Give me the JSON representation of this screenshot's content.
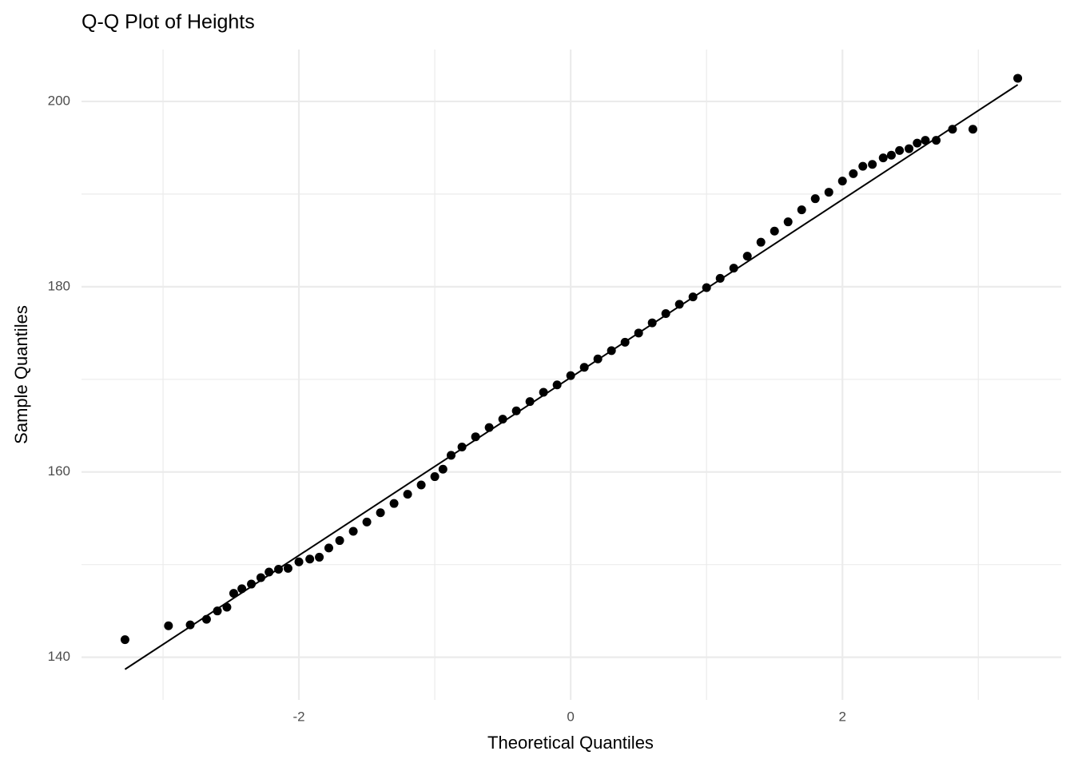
{
  "chart_data": {
    "type": "scatter",
    "title": "Q-Q Plot of Heights",
    "x_label": "Theoretical Quantiles",
    "y_label": "Sample Quantiles",
    "x": [
      -3.28,
      -2.96,
      -2.8,
      -2.68,
      -2.6,
      -2.53,
      -2.48,
      -2.42,
      -2.35,
      -2.28,
      -2.22,
      -2.15,
      -2.08,
      -2.0,
      -1.92,
      -1.85,
      -1.78,
      -1.7,
      -1.6,
      -1.5,
      -1.4,
      -1.3,
      -1.2,
      -1.1,
      -1.0,
      -0.94,
      -0.88,
      -0.8,
      -0.7,
      -0.6,
      -0.5,
      -0.4,
      -0.3,
      -0.2,
      -0.1,
      0.0,
      0.1,
      0.2,
      0.3,
      0.4,
      0.5,
      0.6,
      0.7,
      0.8,
      0.9,
      1.0,
      1.1,
      1.2,
      1.3,
      1.4,
      1.5,
      1.6,
      1.7,
      1.8,
      1.9,
      2.0,
      2.08,
      2.15,
      2.22,
      2.3,
      2.36,
      2.42,
      2.49,
      2.55,
      2.61,
      2.69,
      2.81,
      2.96,
      3.29
    ],
    "values": [
      141.9,
      143.4,
      143.5,
      144.1,
      145.0,
      145.4,
      146.9,
      147.4,
      147.9,
      148.6,
      149.2,
      149.5,
      149.6,
      150.3,
      150.6,
      150.8,
      151.8,
      152.6,
      153.6,
      154.6,
      155.6,
      156.6,
      157.6,
      158.6,
      159.5,
      160.3,
      161.8,
      162.7,
      163.8,
      164.8,
      165.7,
      166.6,
      167.6,
      168.6,
      169.4,
      170.4,
      171.3,
      172.2,
      173.1,
      174.0,
      175.0,
      176.1,
      177.1,
      178.1,
      178.9,
      179.9,
      180.9,
      182.0,
      183.3,
      184.8,
      186.0,
      187.0,
      188.3,
      189.5,
      190.2,
      191.4,
      192.2,
      193.0,
      193.2,
      193.9,
      194.2,
      194.7,
      194.9,
      195.5,
      195.8,
      195.8,
      197.0,
      197.0,
      202.5
    ],
    "color": "#000000",
    "reference_line": {
      "x": [
        -3.28,
        3.29
      ],
      "y": [
        138.7,
        201.8
      ],
      "color": "#000000"
    },
    "xlim": [
      -3.6,
      3.61
    ],
    "ylim": [
      135.4,
      205.6
    ],
    "xticks": [
      -2,
      0,
      2
    ],
    "yticks": [
      140,
      160,
      180,
      200
    ],
    "x_minor_ticks": [
      -3,
      -1,
      1,
      3
    ],
    "y_minor_ticks": [
      150,
      170,
      190
    ],
    "grid": true
  }
}
